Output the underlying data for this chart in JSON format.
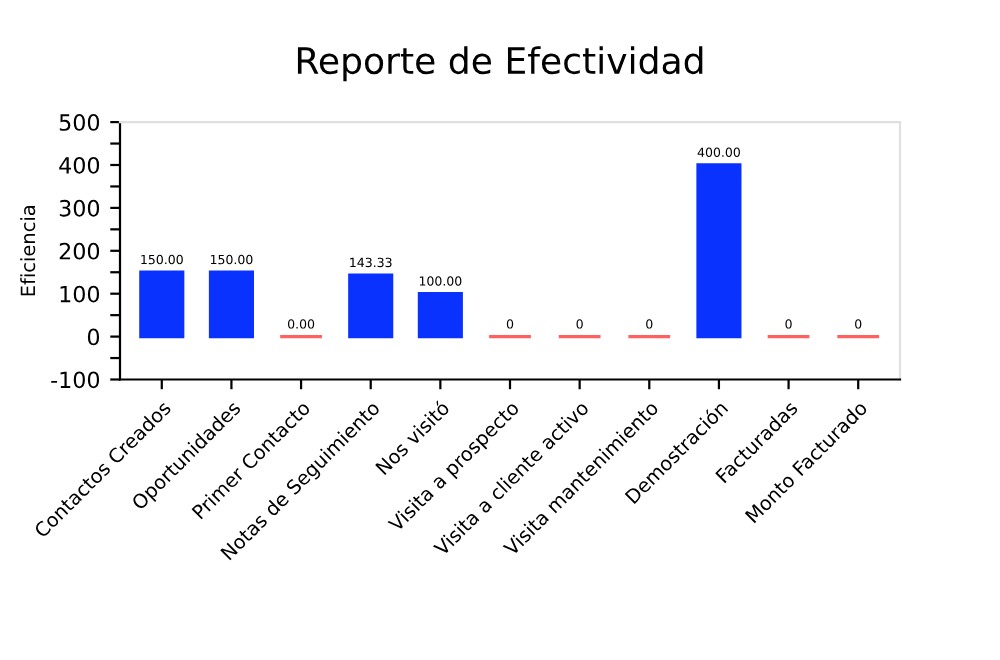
{
  "chart_data": {
    "type": "bar",
    "title": "Reporte de Efectividad",
    "ylabel": "Eficiencia",
    "categories": [
      "Contactos Creados",
      "Oportunidades",
      "Primer Contacto",
      "Notas de Seguimiento",
      "Nos visitó",
      "Visita a prospecto",
      "Visita a cliente activo",
      "Visita mantenimiento",
      "Demostración",
      "Facturadas",
      "Monto Facturado"
    ],
    "values": [
      150,
      150,
      0,
      143.33,
      100,
      0,
      0,
      0,
      400,
      0,
      0
    ],
    "value_labels": [
      "150.00",
      "150.00",
      "0.00",
      "143.33",
      "100.00",
      "0",
      "0",
      "0",
      "400.00",
      "0",
      "0"
    ],
    "colors": [
      "#0a32ff",
      "#0a32ff",
      "#ff6060",
      "#0a32ff",
      "#0a32ff",
      "#ff6060",
      "#ff6060",
      "#ff6060",
      "#0a32ff",
      "#ff6060",
      "#ff6060"
    ],
    "ylim": [
      -100,
      500
    ],
    "yticks": [
      -100,
      {
        "value": -50,
        "label": null
      },
      0,
      {
        "value": 50,
        "label": null
      },
      100,
      {
        "value": 150,
        "label": null
      },
      200,
      {
        "value": 250,
        "label": null
      },
      300,
      {
        "value": 350,
        "label": null
      },
      400,
      {
        "value": 450,
        "label": null
      },
      500
    ],
    "grid": false,
    "legend": false
  }
}
